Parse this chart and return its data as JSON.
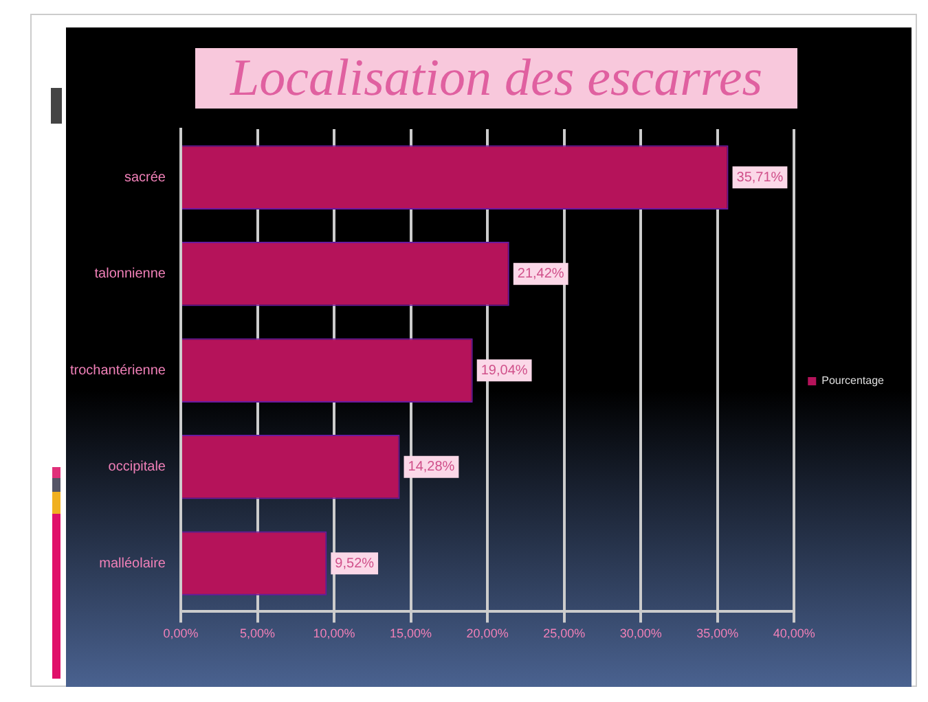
{
  "chart_data": {
    "type": "bar",
    "orientation": "horizontal",
    "title": "Localisation des escarres",
    "categories": [
      "sacrée",
      "talonnienne",
      "trochantérienne",
      "occipitale",
      "malléolaire"
    ],
    "series": [
      {
        "name": "Pourcentage",
        "color": "#b5135a",
        "values": [
          35.71,
          21.42,
          19.04,
          14.28,
          9.52
        ],
        "value_labels": [
          "35,71%",
          "21,42%",
          "19,04%",
          "14,28%",
          "9,52%"
        ]
      }
    ],
    "xlim": [
      0,
      40
    ],
    "xticks": [
      {
        "value": 0,
        "label": "0,00%"
      },
      {
        "value": 5,
        "label": "5,00%"
      },
      {
        "value": 10,
        "label": "10,00%"
      },
      {
        "value": 15,
        "label": "15,00%"
      },
      {
        "value": 20,
        "label": "20,00%"
      },
      {
        "value": 25,
        "label": "25,00%"
      },
      {
        "value": 30,
        "label": "30,00%"
      },
      {
        "value": 35,
        "label": "35,00%"
      },
      {
        "value": 40,
        "label": "40,00%"
      }
    ],
    "grid": "x",
    "legend": "right"
  }
}
